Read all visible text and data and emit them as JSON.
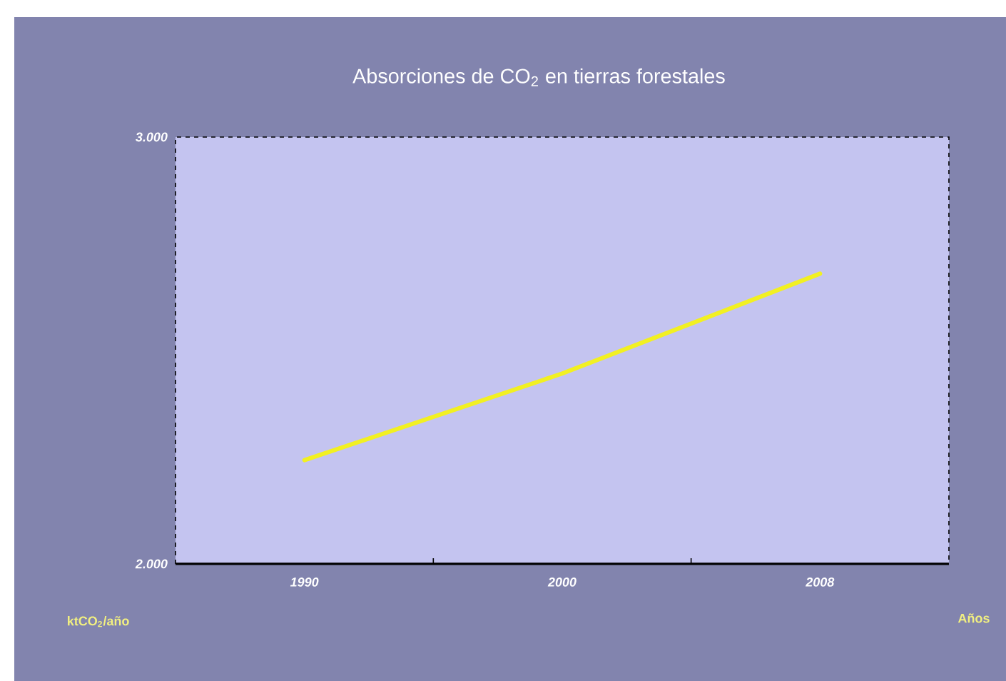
{
  "chart_data": {
    "type": "line",
    "title": "Absorciones de CO$_{2}$ en tierras forestales",
    "xlabel": "Años",
    "ylabel": "ktCO$_{2}$/año",
    "categories": [
      "1990",
      "2000",
      "2008"
    ],
    "series": [
      {
        "color": "#f2f022",
        "values": [
          2243,
          2446,
          2680
        ]
      }
    ],
    "ylim": [
      2000,
      3000
    ],
    "yticks": [
      {
        "value": 2000,
        "label": "2.000"
      },
      {
        "value": 3000,
        "label": "3.000"
      }
    ],
    "marker": "none",
    "line_style": "solid"
  }
}
